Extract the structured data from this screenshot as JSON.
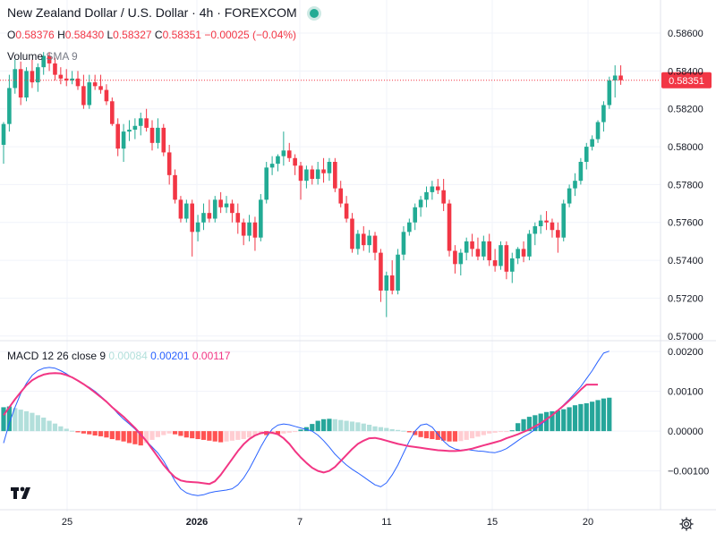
{
  "header": {
    "title": "New Zealand Dollar / U.S. Dollar · 4h · FOREXCOM",
    "ohlc": {
      "o_label": "O",
      "o": "0.58376",
      "h_label": "H",
      "h": "0.58430",
      "l_label": "L",
      "l": "0.58327",
      "c_label": "C",
      "c": "0.58351",
      "change": "−0.00025 (−0.04%)"
    },
    "volume_label": "Volume",
    "volume_sma": "SMA 9"
  },
  "macd_legend": {
    "name": "MACD",
    "params": "12 26 close 9",
    "hist": "0.00084",
    "macd": "0.00201",
    "signal": "0.00117"
  },
  "colors": {
    "up": "#22ab94",
    "down": "#f23645",
    "macd_line": "#2962ff",
    "signal_line": "#f23684",
    "hist_up_strong": "#26a69a",
    "hist_up_weak": "#b2dfdb",
    "hist_down_strong": "#ff5252",
    "hist_down_weak": "#ffcdd2",
    "grid": "#f0f3fa"
  },
  "chart_data": [
    {
      "type": "candlestick",
      "title": "New Zealand Dollar / U.S. Dollar · 4h · FOREXCOM",
      "ylim": [
        0.5698,
        0.5869
      ],
      "y_ticks": [
        "0.58600",
        "0.58400",
        "0.58200",
        "0.58000",
        "0.57800",
        "0.57600",
        "0.57400",
        "0.57200",
        "0.57000"
      ],
      "y_tick_values": [
        0.586,
        0.584,
        0.582,
        0.58,
        0.578,
        0.576,
        0.574,
        0.572,
        0.57
      ],
      "x_ticks": [
        "25",
        "2026",
        "7",
        "11",
        "15",
        "20"
      ],
      "last_price": 0.58351,
      "last_price_label": "0.58351",
      "candles": [
        [
          0.5801,
          0.5813,
          0.5791,
          0.5812
        ],
        [
          0.5812,
          0.5838,
          0.5808,
          0.5831
        ],
        [
          0.5831,
          0.5846,
          0.5828,
          0.5841
        ],
        [
          0.5841,
          0.5845,
          0.5822,
          0.5826
        ],
        [
          0.5826,
          0.5842,
          0.5824,
          0.584
        ],
        [
          0.584,
          0.5846,
          0.5831,
          0.5834
        ],
        [
          0.5834,
          0.5844,
          0.5829,
          0.5842
        ],
        [
          0.5842,
          0.585,
          0.5838,
          0.5848
        ],
        [
          0.5848,
          0.585,
          0.584,
          0.5844
        ],
        [
          0.5844,
          0.5847,
          0.5835,
          0.5838
        ],
        [
          0.5838,
          0.5842,
          0.5833,
          0.5836
        ],
        [
          0.5836,
          0.5841,
          0.5832,
          0.5835
        ],
        [
          0.5835,
          0.584,
          0.5833,
          0.5836
        ],
        [
          0.5836,
          0.584,
          0.583,
          0.5832
        ],
        [
          0.5832,
          0.5838,
          0.582,
          0.5822
        ],
        [
          0.5822,
          0.5838,
          0.582,
          0.5834
        ],
        [
          0.5834,
          0.5838,
          0.583,
          0.5832
        ],
        [
          0.5832,
          0.5838,
          0.5828,
          0.583
        ],
        [
          0.583,
          0.5833,
          0.5822,
          0.5824
        ],
        [
          0.5824,
          0.5826,
          0.5811,
          0.5812
        ],
        [
          0.5812,
          0.5815,
          0.5795,
          0.5799
        ],
        [
          0.5799,
          0.5812,
          0.5792,
          0.5808
        ],
        [
          0.5808,
          0.5814,
          0.5803,
          0.5809
        ],
        [
          0.5809,
          0.5815,
          0.5804,
          0.5811
        ],
        [
          0.5811,
          0.5818,
          0.5806,
          0.5815
        ],
        [
          0.5815,
          0.582,
          0.5808,
          0.581
        ],
        [
          0.581,
          0.5814,
          0.5798,
          0.5802
        ],
        [
          0.5802,
          0.5815,
          0.5799,
          0.581
        ],
        [
          0.581,
          0.5812,
          0.5795,
          0.5797
        ],
        [
          0.5797,
          0.5801,
          0.578,
          0.5785
        ],
        [
          0.5785,
          0.5788,
          0.577,
          0.5772
        ],
        [
          0.5772,
          0.5774,
          0.576,
          0.5762
        ],
        [
          0.5762,
          0.5772,
          0.576,
          0.577
        ],
        [
          0.577,
          0.5772,
          0.5742,
          0.5755
        ],
        [
          0.5755,
          0.5764,
          0.575,
          0.576
        ],
        [
          0.576,
          0.577,
          0.5756,
          0.5765
        ],
        [
          0.5765,
          0.5772,
          0.576,
          0.5762
        ],
        [
          0.5762,
          0.5774,
          0.576,
          0.5772
        ],
        [
          0.5772,
          0.5776,
          0.5765,
          0.5768
        ],
        [
          0.5768,
          0.5774,
          0.5765,
          0.577
        ],
        [
          0.577,
          0.5772,
          0.576,
          0.5765
        ],
        [
          0.5765,
          0.577,
          0.5754,
          0.576
        ],
        [
          0.576,
          0.5762,
          0.5748,
          0.5753
        ],
        [
          0.5753,
          0.5764,
          0.575,
          0.576
        ],
        [
          0.576,
          0.5763,
          0.5745,
          0.5752
        ],
        [
          0.5752,
          0.5775,
          0.575,
          0.5772
        ],
        [
          0.5772,
          0.5792,
          0.577,
          0.5789
        ],
        [
          0.5789,
          0.5795,
          0.5785,
          0.5791
        ],
        [
          0.5791,
          0.5796,
          0.5787,
          0.5795
        ],
        [
          0.5795,
          0.5808,
          0.579,
          0.5798
        ],
        [
          0.5798,
          0.5802,
          0.5792,
          0.5794
        ],
        [
          0.5794,
          0.5796,
          0.5785,
          0.579
        ],
        [
          0.579,
          0.5792,
          0.5772,
          0.5782
        ],
        [
          0.5782,
          0.579,
          0.5778,
          0.5788
        ],
        [
          0.5788,
          0.579,
          0.578,
          0.5783
        ],
        [
          0.5783,
          0.5792,
          0.578,
          0.5788
        ],
        [
          0.5788,
          0.5794,
          0.5781,
          0.5786
        ],
        [
          0.5786,
          0.5794,
          0.5782,
          0.5792
        ],
        [
          0.5792,
          0.5794,
          0.5776,
          0.5778
        ],
        [
          0.5778,
          0.5782,
          0.5768,
          0.577
        ],
        [
          0.577,
          0.5774,
          0.576,
          0.5762
        ],
        [
          0.5762,
          0.5765,
          0.5744,
          0.5746
        ],
        [
          0.5746,
          0.5756,
          0.5743,
          0.5754
        ],
        [
          0.5754,
          0.5758,
          0.5745,
          0.5748
        ],
        [
          0.5748,
          0.5756,
          0.5744,
          0.5753
        ],
        [
          0.5753,
          0.5755,
          0.574,
          0.5744
        ],
        [
          0.5744,
          0.5746,
          0.5718,
          0.5724
        ],
        [
          0.5724,
          0.5734,
          0.571,
          0.5732
        ],
        [
          0.5732,
          0.574,
          0.5722,
          0.5724
        ],
        [
          0.5724,
          0.5746,
          0.5722,
          0.5743
        ],
        [
          0.5743,
          0.5758,
          0.574,
          0.5755
        ],
        [
          0.5755,
          0.5762,
          0.5753,
          0.576
        ],
        [
          0.576,
          0.577,
          0.5756,
          0.5768
        ],
        [
          0.5768,
          0.5774,
          0.5763,
          0.5772
        ],
        [
          0.5772,
          0.5779,
          0.5768,
          0.5776
        ],
        [
          0.5776,
          0.5782,
          0.5772,
          0.5779
        ],
        [
          0.5779,
          0.5783,
          0.5775,
          0.5777
        ],
        [
          0.5777,
          0.5783,
          0.5766,
          0.577
        ],
        [
          0.577,
          0.5772,
          0.5742,
          0.5745
        ],
        [
          0.5745,
          0.5748,
          0.5733,
          0.5738
        ],
        [
          0.5738,
          0.5746,
          0.5732,
          0.5744
        ],
        [
          0.5744,
          0.5752,
          0.574,
          0.575
        ],
        [
          0.575,
          0.5754,
          0.5742,
          0.5746
        ],
        [
          0.5746,
          0.5752,
          0.574,
          0.5742
        ],
        [
          0.5742,
          0.5753,
          0.574,
          0.575
        ],
        [
          0.575,
          0.5754,
          0.5737,
          0.574
        ],
        [
          0.574,
          0.5746,
          0.5734,
          0.5737
        ],
        [
          0.5737,
          0.575,
          0.5735,
          0.5748
        ],
        [
          0.5748,
          0.575,
          0.573,
          0.5734
        ],
        [
          0.5734,
          0.5744,
          0.5728,
          0.5741
        ],
        [
          0.5741,
          0.5747,
          0.5738,
          0.5746
        ],
        [
          0.5746,
          0.575,
          0.5739,
          0.5742
        ],
        [
          0.5742,
          0.5756,
          0.574,
          0.5754
        ],
        [
          0.5754,
          0.576,
          0.5748,
          0.5758
        ],
        [
          0.5758,
          0.5764,
          0.5754,
          0.5761
        ],
        [
          0.5761,
          0.5766,
          0.5756,
          0.576
        ],
        [
          0.576,
          0.5762,
          0.5752,
          0.5756
        ],
        [
          0.5756,
          0.576,
          0.5744,
          0.5752
        ],
        [
          0.5752,
          0.5772,
          0.575,
          0.577
        ],
        [
          0.577,
          0.578,
          0.5768,
          0.5778
        ],
        [
          0.5778,
          0.5786,
          0.5774,
          0.5782
        ],
        [
          0.5782,
          0.5794,
          0.578,
          0.5792
        ],
        [
          0.5792,
          0.5802,
          0.5788,
          0.58
        ],
        [
          0.58,
          0.5806,
          0.5798,
          0.5804
        ],
        [
          0.5804,
          0.5814,
          0.5802,
          0.5813
        ],
        [
          0.5813,
          0.5824,
          0.5808,
          0.5822
        ],
        [
          0.5822,
          0.5837,
          0.582,
          0.5835
        ],
        [
          0.5835,
          0.5843,
          0.5826,
          0.58376
        ],
        [
          0.58376,
          0.5843,
          0.58327,
          0.58351
        ]
      ]
    },
    {
      "type": "macd",
      "name": "MACD",
      "params": "12 26 close 9",
      "ylim": [
        -0.00175,
        0.00225
      ],
      "y_ticks": [
        "0.00200",
        "0.00100",
        "0.00000",
        "−0.00100"
      ],
      "y_tick_values": [
        0.002,
        0.001,
        0.0,
        -0.001
      ],
      "series": [
        {
          "name": "MACD",
          "values": [
            -0.0003,
            0.0002,
            0.0006,
            0.00095,
            0.0012,
            0.0014,
            0.00152,
            0.00158,
            0.0016,
            0.00158,
            0.00152,
            0.00144,
            0.00135,
            0.00126,
            0.00118,
            0.0011,
            0.001,
            0.00088,
            0.00075,
            0.0006,
            0.00044,
            0.0003,
            0.00018,
            5e-05,
            -0.0001,
            -0.00025,
            -0.0004,
            -0.00055,
            -0.00075,
            -0.001,
            -0.00125,
            -0.00145,
            -0.00155,
            -0.0016,
            -0.00162,
            -0.0016,
            -0.00155,
            -0.00152,
            -0.0015,
            -0.00148,
            -0.00145,
            -0.00135,
            -0.00118,
            -0.00095,
            -0.00068,
            -0.0004,
            -0.00015,
            5e-05,
            0.00015,
            0.00018,
            0.00016,
            0.00012,
            8e-05,
            4e-05,
            0.0,
            -0.0001,
            -0.00024,
            -0.0004,
            -0.00058,
            -0.00072,
            -0.00085,
            -0.00096,
            -0.00105,
            -0.00115,
            -0.00125,
            -0.00135,
            -0.0014,
            -0.0013,
            -0.0011,
            -0.00085,
            -0.00055,
            -0.00025,
            0.0,
            0.00015,
            0.00018,
            0.0001,
            -8e-05,
            -0.00025,
            -0.00038,
            -0.00045,
            -0.00048,
            -0.00046,
            -0.00048,
            -0.0005,
            -0.00051,
            -0.00053,
            -0.00054,
            -0.0005,
            -0.00044,
            -0.00034,
            -0.00024,
            -0.00014,
            -6e-05,
            4e-05,
            0.00016,
            0.00028,
            0.0004,
            0.00052,
            0.00066,
            0.0008,
            0.00096,
            0.00112,
            0.00132,
            0.00152,
            0.00175,
            0.00196,
            0.00201
          ]
        },
        {
          "name": "Signal",
          "values": [
            0.0004,
            0.0006,
            0.0008,
            0.00098,
            0.00115,
            0.00128,
            0.00136,
            0.00142,
            0.00145,
            0.00146,
            0.00145,
            0.00141,
            0.00135,
            0.00127,
            0.00118,
            0.00108,
            0.00097,
            0.00086,
            0.00074,
            0.0006,
            0.00048,
            0.00036,
            0.00022,
            8e-05,
            -8e-05,
            -0.00025,
            -0.00045,
            -0.00065,
            -0.00085,
            -0.00102,
            -0.00116,
            -0.00124,
            -0.00127,
            -0.00128,
            -0.00129,
            -0.00131,
            -0.00133,
            -0.00126,
            -0.0011,
            -0.0009,
            -0.0007,
            -0.0005,
            -0.00033,
            -0.0002,
            -0.00011,
            -5e-05,
            -3e-05,
            -4e-05,
            -8e-05,
            -0.00018,
            -0.00032,
            -0.0005,
            -0.00066,
            -0.0008,
            -0.00092,
            -0.001,
            -0.00104,
            -0.001,
            -0.0009,
            -0.00075,
            -0.0006,
            -0.00045,
            -0.00032,
            -0.00024,
            -0.00018,
            -0.00017,
            -0.0002,
            -0.00024,
            -0.00028,
            -0.00032,
            -0.00035,
            -0.00038,
            -0.0004,
            -0.00042,
            -0.00044,
            -0.00046,
            -0.00048,
            -0.00049,
            -0.0005,
            -0.0005,
            -0.00049,
            -0.00047,
            -0.00044,
            -0.0004,
            -0.00036,
            -0.00032,
            -0.00028,
            -0.00024,
            -0.00018,
            -0.00013,
            -8e-05,
            -2e-05,
            4e-05,
            0.00012,
            0.0002,
            0.0003,
            0.0004,
            0.00052,
            0.00064,
            0.00077,
            0.0009,
            0.00104,
            0.00117,
            0.00117,
            0.00117
          ]
        },
        {
          "name": "Histogram",
          "values": [
            0.0006,
            0.00062,
            0.00058,
            0.00054,
            0.0005,
            0.00046,
            0.0004,
            0.00034,
            0.00026,
            0.00019,
            0.00012,
            6e-05,
            1e-05,
            -3e-05,
            -6e-05,
            -8e-05,
            -0.00011,
            -0.00013,
            -0.00016,
            -0.0002,
            -0.00023,
            -0.00026,
            -0.0003,
            -0.00033,
            -0.00036,
            -0.0003,
            -0.00022,
            -0.00015,
            -0.0001,
            -6e-05,
            -8e-05,
            -0.00012,
            -0.00016,
            -0.00018,
            -0.0002,
            -0.00022,
            -0.00024,
            -0.00026,
            -0.00028,
            -0.00026,
            -0.00024,
            -0.00022,
            -0.0002,
            -0.00016,
            -0.00012,
            -8e-05,
            -0.0001,
            -8e-05,
            -8e-05,
            -6e-05,
            -4e-05,
            -2e-05,
            4e-05,
            0.0001,
            0.00018,
            0.00026,
            0.0003,
            0.00031,
            0.0003,
            0.00028,
            0.00026,
            0.00024,
            0.00022,
            0.00019,
            0.00016,
            0.00012,
            0.0001,
            8e-05,
            5e-05,
            3e-05,
            1e-05,
            -3e-05,
            -0.0001,
            -0.00015,
            -0.00018,
            -0.0002,
            -0.00022,
            -0.00024,
            -0.00026,
            -0.00026,
            -0.00025,
            -0.00022,
            -0.00018,
            -0.00014,
            -0.0001,
            -6e-05,
            -4e-05,
            -2e-05,
            -1e-05,
            2e-05,
            0.0002,
            0.0003,
            0.00036,
            0.0004,
            0.00044,
            0.00048,
            0.0005,
            0.00052,
            0.00055,
            0.0006,
            0.00065,
            0.00068,
            0.0007,
            0.00074,
            0.00078,
            0.00082,
            0.00084
          ]
        }
      ]
    }
  ]
}
